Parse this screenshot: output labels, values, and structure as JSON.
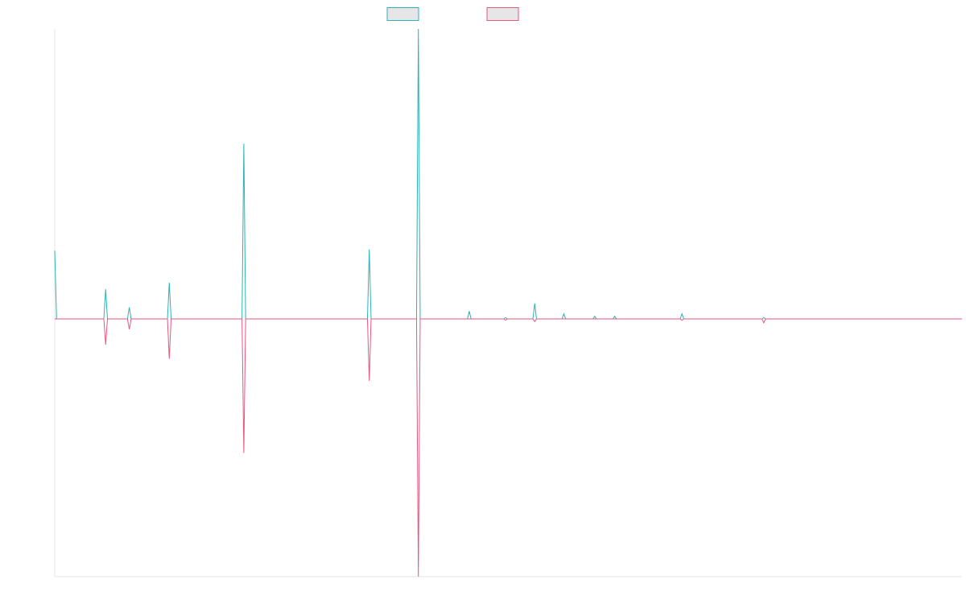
{
  "colors": {
    "series1": "#2bb3b7",
    "series2": "#e9567e",
    "legend_fill": "#e6e6e6",
    "axis": "#e6e6e6"
  },
  "chart_data": {
    "type": "line",
    "title": "",
    "xlabel": "",
    "ylabel": "",
    "x_count": 500,
    "xlim": [
      0,
      499
    ],
    "ylim": [
      -1.0,
      1.125
    ],
    "grid": false,
    "legend_position": "top-center",
    "series": [
      {
        "legend_label": "",
        "color": "#2bb3b7",
        "direction": "up",
        "spikes": [
          {
            "x": 0,
            "value": 0.265
          },
          {
            "x": 28,
            "value": 0.115
          },
          {
            "x": 41,
            "value": 0.045
          },
          {
            "x": 63,
            "value": 0.14
          },
          {
            "x": 104,
            "value": 0.68
          },
          {
            "x": 173,
            "value": 0.27
          },
          {
            "x": 200,
            "value": 1.125
          },
          {
            "x": 228,
            "value": 0.03
          },
          {
            "x": 248,
            "value": 0.005
          },
          {
            "x": 264,
            "value": 0.06
          },
          {
            "x": 280,
            "value": 0.02
          },
          {
            "x": 297,
            "value": 0.01
          },
          {
            "x": 308,
            "value": 0.01
          },
          {
            "x": 345,
            "value": 0.02
          },
          {
            "x": 390,
            "value": 0.005
          }
        ]
      },
      {
        "legend_label": "",
        "color": "#e9567e",
        "direction": "down",
        "spikes": [
          {
            "x": 28,
            "value": -0.1
          },
          {
            "x": 41,
            "value": -0.04
          },
          {
            "x": 63,
            "value": -0.155
          },
          {
            "x": 104,
            "value": -0.52
          },
          {
            "x": 173,
            "value": -0.24
          },
          {
            "x": 200,
            "value": -1.0
          },
          {
            "x": 248,
            "value": -0.005
          },
          {
            "x": 264,
            "value": -0.01
          },
          {
            "x": 345,
            "value": -0.005
          },
          {
            "x": 390,
            "value": -0.015
          }
        ]
      }
    ]
  }
}
